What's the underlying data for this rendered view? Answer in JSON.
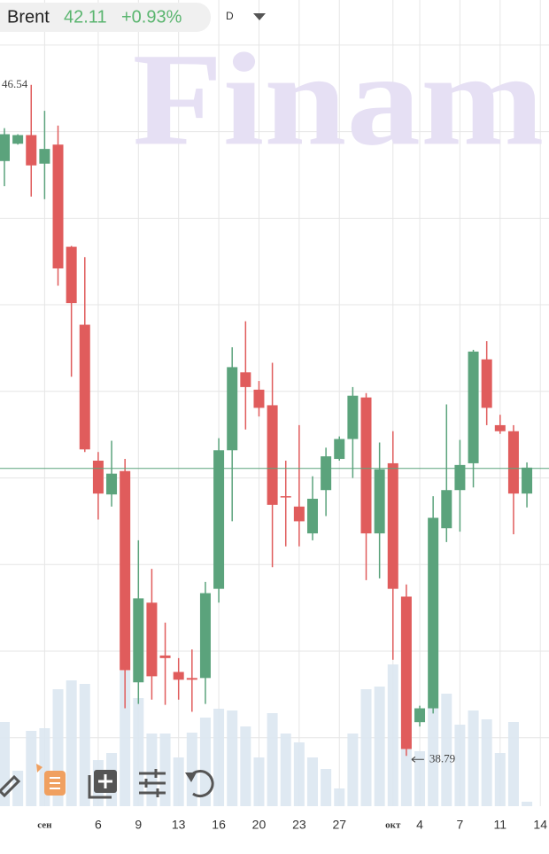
{
  "chart_data": {
    "type": "candlestick",
    "symbol": "Brent",
    "last_price": 42.11,
    "change": "+0.93%",
    "interval": "D",
    "watermark": "Finam",
    "categories": [
      null,
      null,
      null,
      "сен",
      null,
      null,
      null,
      "6",
      null,
      null,
      "9",
      null,
      null,
      "13",
      null,
      null,
      "16",
      null,
      null,
      "20",
      null,
      null,
      "23",
      null,
      null,
      "27",
      null,
      null,
      null,
      "окт",
      null,
      "4",
      null,
      null,
      "7",
      null,
      null,
      "11",
      null,
      null,
      "14"
    ],
    "open": [
      45.66,
      45.86,
      45.96,
      45.63,
      45.85,
      44.67,
      43.77,
      42.2,
      41.81,
      42.08,
      39.64,
      40.56,
      39.95,
      39.76,
      39.69,
      39.69,
      40.72,
      42.32,
      43.22,
      43.02,
      42.84,
      41.79,
      41.67,
      41.36,
      41.86,
      42.22,
      42.45,
      42.93,
      41.36,
      42.17,
      40.63,
      39.18,
      39.34,
      41.42,
      41.86,
      42.17,
      43.37,
      42.61,
      42.54,
      41.82,
      null
    ],
    "high": [
      46.04,
      45.97,
      46.54,
      46.24,
      46.07,
      44.68,
      44.55,
      42.3,
      42.43,
      42.22,
      41.28,
      40.95,
      40.33,
      39.92,
      40.02,
      40.8,
      42.46,
      43.51,
      43.81,
      43.12,
      43.33,
      42.2,
      42.61,
      42.02,
      42.35,
      42.48,
      43.05,
      42.98,
      42.41,
      42.54,
      40.77,
      39.37,
      41.79,
      42.85,
      42.44,
      43.48,
      43.58,
      42.73,
      42.61,
      42.18,
      null
    ],
    "low": [
      45.37,
      45.85,
      45.25,
      45.22,
      44.22,
      43.17,
      42.3,
      41.52,
      41.67,
      39.34,
      39.39,
      39.44,
      39.38,
      39.44,
      39.3,
      39.39,
      40.56,
      41.5,
      42.56,
      42.71,
      40.97,
      41.21,
      41.21,
      41.28,
      41.56,
      42.2,
      42.0,
      40.82,
      40.84,
      39.9,
      38.79,
      39.13,
      39.28,
      41.26,
      41.38,
      41.89,
      42.61,
      42.51,
      41.35,
      41.66,
      null
    ],
    "close": [
      45.97,
      45.96,
      45.61,
      45.8,
      44.42,
      44.02,
      42.33,
      41.82,
      42.05,
      39.78,
      40.61,
      39.71,
      39.92,
      39.67,
      39.67,
      40.67,
      42.32,
      43.28,
      43.05,
      42.81,
      41.69,
      41.78,
      41.5,
      41.76,
      42.25,
      42.45,
      42.95,
      41.36,
      42.1,
      40.72,
      38.87,
      39.34,
      41.54,
      41.86,
      42.15,
      43.46,
      42.81,
      42.54,
      41.82,
      42.12,
      null
    ],
    "volume": [
      95,
      40,
      85,
      88,
      132,
      142,
      138,
      52,
      60,
      153,
      122,
      82,
      82,
      55,
      83,
      100,
      110,
      108,
      90,
      55,
      105,
      82,
      72,
      55,
      42,
      20,
      82,
      132,
      135,
      160,
      135,
      62,
      112,
      127,
      92,
      108,
      98,
      60,
      95,
      5,
      null
    ],
    "up_color": "#5ba37c",
    "down_color": "#e05c5c",
    "volume_color": "#dce7f1",
    "ylim": [
      38.21,
      47.52
    ],
    "vlim": [
      0,
      200
    ],
    "grid_lines": [
      39,
      40,
      41,
      42,
      43,
      44,
      45,
      46,
      47
    ]
  }
}
